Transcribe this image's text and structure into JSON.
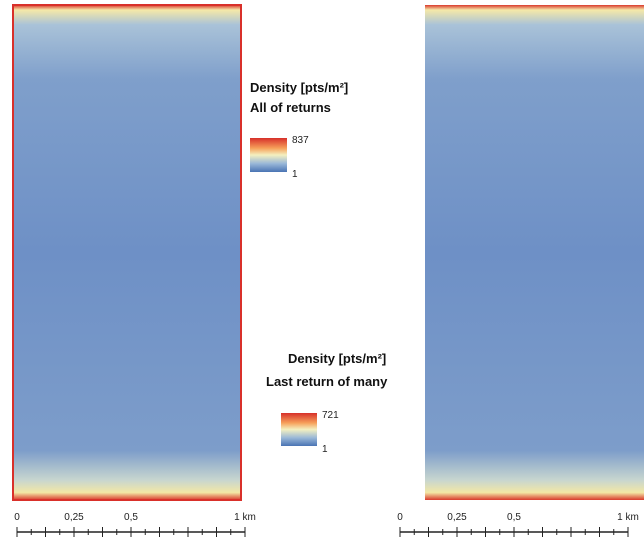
{
  "legends": [
    {
      "title": "Density [pts/m²]",
      "subtitle": "All of returns",
      "max_label": "837",
      "min_label": "1"
    },
    {
      "title": "Density [pts/m²]",
      "subtitle": "Last return of many",
      "max_label": "721",
      "min_label": "1"
    }
  ],
  "scale_bars": [
    {
      "labels": [
        "0",
        "0,25",
        "0,5",
        "1 km"
      ]
    },
    {
      "labels": [
        "0",
        "0,25",
        "0,5",
        "1 km"
      ]
    }
  ]
}
